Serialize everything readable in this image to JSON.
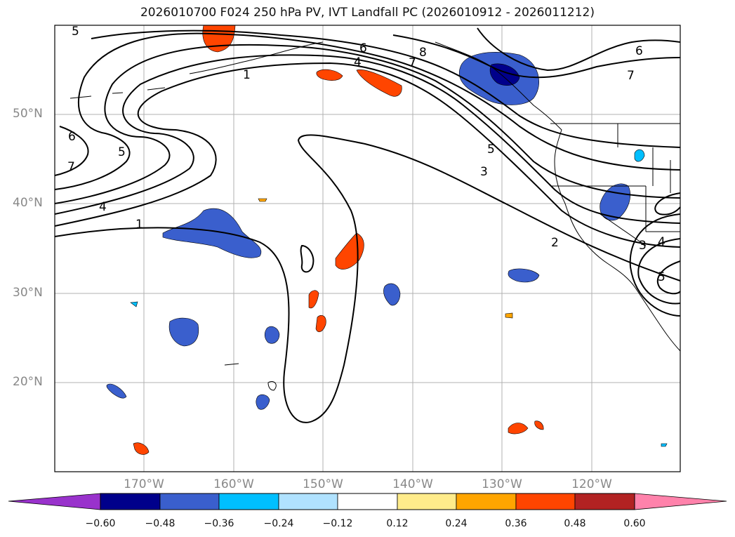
{
  "title": "2026010700 F024 250 hPa PV, IVT Landfall PC (2026010912 - 2026011212)",
  "map": {
    "lat_labels": [
      "50°N",
      "40°N",
      "30°N",
      "20°N"
    ],
    "lon_labels": [
      "170°W",
      "160°W",
      "150°W",
      "140°W",
      "130°W",
      "120°W"
    ],
    "contour_labels": [
      "5",
      "6",
      "7",
      "1",
      "4",
      "1",
      "5",
      "6",
      "7",
      "8",
      "4",
      "6",
      "7",
      "5",
      "3",
      "2",
      "3",
      "4",
      "5"
    ],
    "contour_color": "#000000",
    "positive_fill_colors": [
      "#ffec8b",
      "#ffa500",
      "#ff4500"
    ],
    "negative_fill_colors": [
      "#b0e2ff",
      "#00bfff",
      "#3a5fcd",
      "#00008b"
    ]
  },
  "colorbar": {
    "ticks": [
      "−0.60",
      "−0.48",
      "−0.36",
      "−0.24",
      "−0.12",
      "0.12",
      "0.24",
      "0.36",
      "0.48",
      "0.60"
    ],
    "colors": [
      "#9932cc",
      "#00008b",
      "#3a5fcd",
      "#00bfff",
      "#b0e2ff",
      "#ffffff",
      "#ffec8b",
      "#ffa500",
      "#ff4500",
      "#b22222",
      "#ff82ab"
    ]
  }
}
